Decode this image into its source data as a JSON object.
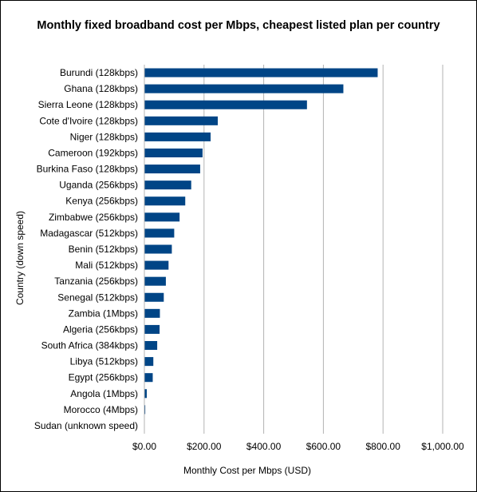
{
  "chart_data": {
    "type": "bar",
    "orientation": "horizontal",
    "title": "Monthly fixed broadband cost per Mbps, cheapest listed plan per country",
    "xlabel": "Monthly Cost per Mbps (USD)",
    "ylabel": "Country (down speed)",
    "xlim": [
      0,
      1000
    ],
    "x_ticks": [
      0,
      200,
      400,
      600,
      800,
      1000
    ],
    "x_tick_labels": [
      "$0.00",
      "$200.00",
      "$400.00",
      "$600.00",
      "$800.00",
      "$1,000.00"
    ],
    "grid": "vertical",
    "legend": "none",
    "bar_color": "#004586",
    "categories": [
      "Burundi (128kbps)",
      "Ghana (128kbps)",
      "Sierra Leone (128kbps)",
      "Cote d'Ivoire (128kbps)",
      "Niger (128kbps)",
      "Cameroon (192kbps)",
      "Burkina Faso (128kbps)",
      "Uganda (256kbps)",
      "Kenya (256kbps)",
      "Zimbabwe (256kbps)",
      "Madagascar (512kbps)",
      "Benin (512kbps)",
      "Mali (512kbps)",
      "Tanzania (256kbps)",
      "Senegal (512kbps)",
      "Zambia (1Mbps)",
      "Algeria (256kbps)",
      "South Africa (384kbps)",
      "Libya (512kbps)",
      "Egypt (256kbps)",
      "Angola (1Mbps)",
      "Morocco (4Mbps)",
      "Sudan (unknown speed)"
    ],
    "values": [
      782,
      667,
      545,
      246,
      222,
      195,
      187,
      157,
      137,
      118,
      100,
      92,
      81,
      72,
      65,
      52,
      51,
      43,
      30,
      28,
      8,
      3,
      0
    ]
  }
}
